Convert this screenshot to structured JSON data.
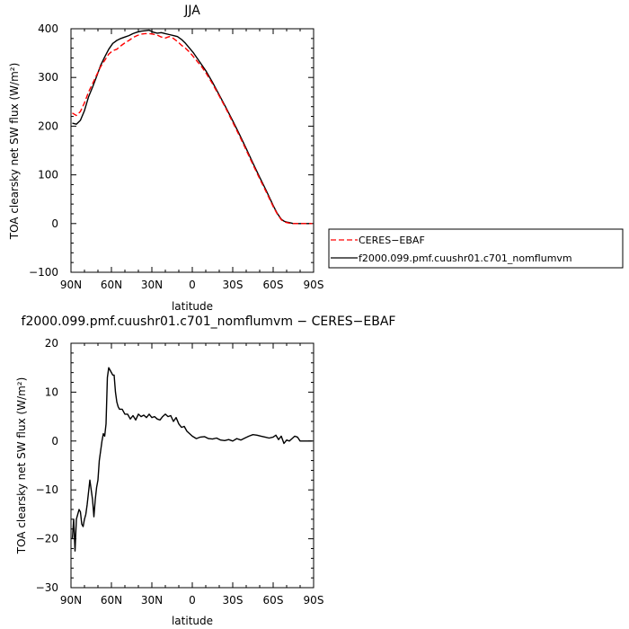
{
  "chart_data": [
    {
      "type": "line",
      "title": "JJA",
      "xlabel": "latitude",
      "ylabel": "TOA clearsky net SW flux (W/m²)",
      "xlim": [
        90,
        -90
      ],
      "ylim": [
        -100,
        400
      ],
      "xticks": [
        "90N",
        "60N",
        "30N",
        "0",
        "30S",
        "60S",
        "90S"
      ],
      "yticks": [
        "−100",
        "0",
        "100",
        "200",
        "300",
        "400"
      ],
      "legend_position": "right",
      "series": [
        {
          "name": "CERES−EBAF",
          "color": "#ff0000",
          "dash": "dashed",
          "x": [
            89,
            86,
            83,
            80,
            77,
            74,
            71,
            68,
            65,
            62,
            59,
            56,
            53,
            50,
            47,
            44,
            41,
            38,
            35,
            32,
            29,
            26,
            23,
            20,
            17,
            14,
            11,
            8,
            5,
            2,
            -1,
            -4,
            -7,
            -10,
            -15,
            -20,
            -25,
            -30,
            -35,
            -40,
            -45,
            -50,
            -55,
            -60,
            -63,
            -66,
            -68,
            -70,
            -72,
            -75,
            -78,
            -80,
            -85,
            -89
          ],
          "y": [
            227,
            222,
            230,
            248,
            270,
            287,
            305,
            322,
            335,
            348,
            355,
            358,
            365,
            371,
            376,
            382,
            386,
            389,
            390,
            390,
            389,
            387,
            383,
            381,
            384,
            380,
            374,
            366,
            360,
            352,
            342,
            332,
            322,
            310,
            287,
            262,
            236,
            208,
            180,
            151,
            121,
            92,
            64,
            35,
            20,
            8,
            4,
            2,
            1,
            0,
            0,
            0,
            0,
            0
          ]
        },
        {
          "name": "f2000.099.pmf.cuushr01.c701_nomflumvm",
          "color": "#000000",
          "dash": "solid",
          "x": [
            89,
            86,
            83,
            80,
            77,
            74,
            71,
            68,
            65,
            62,
            59,
            56,
            53,
            50,
            47,
            44,
            41,
            38,
            35,
            32,
            29,
            26,
            23,
            20,
            17,
            14,
            11,
            8,
            5,
            2,
            -1,
            -4,
            -7,
            -10,
            -15,
            -20,
            -25,
            -30,
            -35,
            -40,
            -45,
            -50,
            -55,
            -60,
            -63,
            -66,
            -68,
            -70,
            -72,
            -75,
            -78,
            -80,
            -85,
            -89
          ],
          "y": [
            206,
            204,
            212,
            232,
            260,
            280,
            302,
            325,
            342,
            358,
            370,
            376,
            380,
            383,
            386,
            390,
            393,
            395,
            396,
            397,
            393,
            391,
            392,
            390,
            388,
            386,
            384,
            378,
            370,
            360,
            350,
            338,
            326,
            314,
            290,
            264,
            238,
            211,
            183,
            154,
            124,
            95,
            67,
            37,
            21,
            9,
            5,
            3,
            2,
            0,
            0,
            0,
            0,
            0
          ]
        }
      ]
    },
    {
      "type": "line",
      "title": "f2000.099.pmf.cuushr01.c701_nomflumvm − CERES−EBAF",
      "xlabel": "latitude",
      "ylabel": "TOA clearsky net SW flux (W/m²)",
      "xlim": [
        90,
        -90
      ],
      "ylim": [
        -30,
        20
      ],
      "xticks": [
        "90N",
        "60N",
        "30N",
        "0",
        "30S",
        "60S",
        "90S"
      ],
      "yticks": [
        "−30",
        "−20",
        "−10",
        "0",
        "10",
        "20"
      ],
      "series": [
        {
          "color": "#000000",
          "dash": "solid",
          "x": [
            89,
            88,
            87,
            86,
            85,
            84,
            83,
            82,
            81,
            80,
            79,
            78,
            77,
            76,
            75,
            74,
            73,
            72,
            71,
            70,
            69,
            68,
            67,
            66,
            65,
            64,
            63,
            62,
            61,
            60,
            59,
            58,
            57,
            56,
            55,
            54,
            52,
            50,
            48,
            46,
            44,
            42,
            40,
            38,
            36,
            34,
            32,
            30,
            28,
            26,
            24,
            22,
            20,
            18,
            16,
            14,
            12,
            10,
            8,
            6,
            4,
            2,
            0,
            -3,
            -6,
            -9,
            -12,
            -15,
            -18,
            -21,
            -24,
            -27,
            -30,
            -33,
            -36,
            -39,
            -42,
            -45,
            -48,
            -51,
            -54,
            -57,
            -60,
            -62,
            -64,
            -66,
            -68,
            -70,
            -72,
            -74,
            -76,
            -78,
            -80,
            -82,
            -85,
            -89
          ],
          "y": [
            -20,
            -16,
            -22.5,
            -16,
            -15,
            -14,
            -14.5,
            -17,
            -17.5,
            -16,
            -15,
            -13,
            -10.5,
            -8,
            -10,
            -12,
            -15.5,
            -12,
            -9.5,
            -8,
            -4,
            -2,
            0,
            1.5,
            1,
            3.5,
            13,
            15,
            14.5,
            14,
            13.5,
            13.5,
            10,
            8,
            7,
            6.5,
            6.5,
            5.5,
            5.5,
            4.5,
            5.2,
            4.3,
            5.5,
            5,
            5.3,
            4.8,
            5.5,
            4.8,
            5,
            4.5,
            4.3,
            5,
            5.5,
            5,
            5.2,
            4,
            4.8,
            3.5,
            2.8,
            3,
            2,
            1.5,
            1,
            0.5,
            0.8,
            0.9,
            0.5,
            0.4,
            0.6,
            0.2,
            0.1,
            0.3,
            0,
            0.5,
            0.2,
            0.6,
            1,
            1.3,
            1.2,
            1,
            0.8,
            0.6,
            0.8,
            1.2,
            0.3,
            1,
            -0.5,
            0.2,
            0,
            0.5,
            1,
            0.8,
            0,
            0,
            0,
            0
          ]
        }
      ]
    }
  ]
}
